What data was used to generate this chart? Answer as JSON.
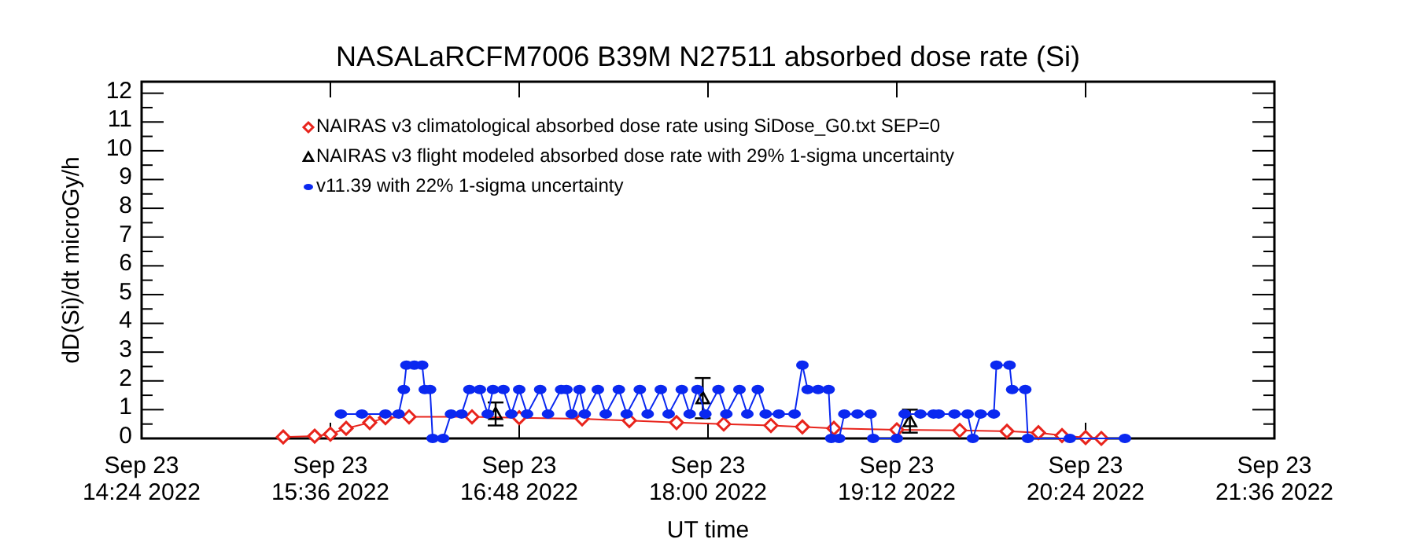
{
  "chart_data": {
    "type": "line",
    "title": "NASALaRCFM7006  B39M N27511 absorbed dose rate (Si)",
    "xlabel": "UT time",
    "ylabel": "dD(Si)/dt microGy/h",
    "xlim": [
      "2022-09-23T14:24",
      "2022-09-23T21:36"
    ],
    "ylim": [
      0,
      12.4
    ],
    "xticks": [
      {
        "value": "2022-09-23T14:24",
        "label": "Sep 23\n14:24 2022"
      },
      {
        "value": "2022-09-23T15:36",
        "label": "Sep 23\n15:36 2022"
      },
      {
        "value": "2022-09-23T16:48",
        "label": "Sep 23\n16:48 2022"
      },
      {
        "value": "2022-09-23T18:00",
        "label": "Sep 23\n18:00 2022"
      },
      {
        "value": "2022-09-23T19:12",
        "label": "Sep 23\n19:12 2022"
      },
      {
        "value": "2022-09-23T20:24",
        "label": "Sep 23\n20:24 2022"
      },
      {
        "value": "2022-09-23T21:36",
        "label": "Sep 23\n21:36 2022"
      }
    ],
    "yticks": [
      0,
      {
        "value": 0.5,
        "label": null
      },
      1,
      {
        "value": 1.5,
        "label": null
      },
      2,
      {
        "value": 2.5,
        "label": null
      },
      3,
      {
        "value": 3.5,
        "label": null
      },
      4,
      {
        "value": 4.5,
        "label": null
      },
      5,
      {
        "value": 5.5,
        "label": null
      },
      6,
      {
        "value": 6.5,
        "label": null
      },
      7,
      {
        "value": 7.5,
        "label": null
      },
      8,
      {
        "value": 8.5,
        "label": null
      },
      9,
      {
        "value": 9.5,
        "label": null
      },
      10,
      {
        "value": 10.5,
        "label": null
      },
      11,
      {
        "value": 11.5,
        "label": null
      },
      12
    ],
    "legend": "top",
    "grid": false,
    "series": [
      {
        "name": "NAIRAS v3 climatological absorbed dose rate using SiDose_G0.txt SEP=0",
        "marker": "diamond",
        "color": "#e8241c",
        "x": [
          "2022-09-23T15:18",
          "2022-09-23T15:30",
          "2022-09-23T15:36",
          "2022-09-23T15:42",
          "2022-09-23T15:51",
          "2022-09-23T15:57",
          "2022-09-23T16:06",
          "2022-09-23T16:30",
          "2022-09-23T16:48",
          "2022-09-23T17:12",
          "2022-09-23T17:30",
          "2022-09-23T17:48",
          "2022-09-23T18:06",
          "2022-09-23T18:24",
          "2022-09-23T18:36",
          "2022-09-23T18:48",
          "2022-09-23T19:12",
          "2022-09-23T19:36",
          "2022-09-23T19:54",
          "2022-09-23T20:06",
          "2022-09-23T20:15",
          "2022-09-23T20:24",
          "2022-09-23T20:30"
        ],
        "values": [
          0.05,
          0.08,
          0.15,
          0.35,
          0.55,
          0.72,
          0.75,
          0.75,
          0.72,
          0.68,
          0.62,
          0.55,
          0.5,
          0.45,
          0.4,
          0.35,
          0.3,
          0.28,
          0.25,
          0.2,
          0.1,
          0.03,
          0
        ]
      },
      {
        "name": "NAIRAS v3 flight modeled absorbed dose rate with 29% 1-sigma uncertainty",
        "type": "scatter",
        "marker": "triangle",
        "color": "#000000",
        "x": [
          "2022-09-23T16:39",
          "2022-09-23T17:58",
          "2022-09-23T19:17"
        ],
        "values": [
          0.85,
          1.4,
          0.6
        ],
        "errors": [
          0.4,
          0.7,
          0.4
        ]
      },
      {
        "name": "v11.39 with 22% 1-sigma uncertainty",
        "marker": "circle",
        "color": "#0a28f0",
        "x": [
          "2022-09-23T15:40",
          "2022-09-23T15:48",
          "2022-09-23T15:57",
          "2022-09-23T16:02",
          "2022-09-23T16:04",
          "2022-09-23T16:05",
          "2022-09-23T16:08",
          "2022-09-23T16:11",
          "2022-09-23T16:12",
          "2022-09-23T16:14",
          "2022-09-23T16:15",
          "2022-09-23T16:19",
          "2022-09-23T16:22",
          "2022-09-23T16:26",
          "2022-09-23T16:29",
          "2022-09-23T16:33",
          "2022-09-23T16:36",
          "2022-09-23T16:38",
          "2022-09-23T16:42",
          "2022-09-23T16:45",
          "2022-09-23T16:48",
          "2022-09-23T16:51",
          "2022-09-23T16:56",
          "2022-09-23T16:59",
          "2022-09-23T17:04",
          "2022-09-23T17:06",
          "2022-09-23T17:08",
          "2022-09-23T17:11",
          "2022-09-23T17:13",
          "2022-09-23T17:18",
          "2022-09-23T17:21",
          "2022-09-23T17:26",
          "2022-09-23T17:29",
          "2022-09-23T17:34",
          "2022-09-23T17:37",
          "2022-09-23T17:42",
          "2022-09-23T17:45",
          "2022-09-23T17:50",
          "2022-09-23T17:53",
          "2022-09-23T17:56",
          "2022-09-23T17:59",
          "2022-09-23T18:04",
          "2022-09-23T18:07",
          "2022-09-23T18:12",
          "2022-09-23T18:15",
          "2022-09-23T18:19",
          "2022-09-23T18:22",
          "2022-09-23T18:27",
          "2022-09-23T18:33",
          "2022-09-23T18:36",
          "2022-09-23T18:38",
          "2022-09-23T18:42",
          "2022-09-23T18:46",
          "2022-09-23T18:47",
          "2022-09-23T18:50",
          "2022-09-23T18:52",
          "2022-09-23T18:57",
          "2022-09-23T19:02",
          "2022-09-23T19:03",
          "2022-09-23T19:12",
          "2022-09-23T19:15",
          "2022-09-23T19:21",
          "2022-09-23T19:26",
          "2022-09-23T19:28",
          "2022-09-23T19:34",
          "2022-09-23T19:39",
          "2022-09-23T19:41",
          "2022-09-23T19:44",
          "2022-09-23T19:49",
          "2022-09-23T19:50",
          "2022-09-23T19:55",
          "2022-09-23T19:56",
          "2022-09-23T20:01",
          "2022-09-23T20:02",
          "2022-09-23T20:18",
          "2022-09-23T20:39"
        ],
        "values": [
          0.85,
          0.85,
          0.85,
          0.85,
          1.7,
          2.55,
          2.55,
          2.55,
          1.7,
          1.7,
          0,
          0,
          0.85,
          0.85,
          1.7,
          1.7,
          0.85,
          1.7,
          1.7,
          0.85,
          1.7,
          0.85,
          1.7,
          0.85,
          1.7,
          1.7,
          0.85,
          1.7,
          0.85,
          1.7,
          0.85,
          1.7,
          0.85,
          1.7,
          0.85,
          1.7,
          0.85,
          1.7,
          0.85,
          1.7,
          0.85,
          1.7,
          0.85,
          1.7,
          0.85,
          1.7,
          0.85,
          0.85,
          0.85,
          2.55,
          1.7,
          1.7,
          1.7,
          0,
          0,
          0.85,
          0.85,
          0.85,
          0,
          0,
          0.85,
          0.85,
          0.85,
          0.85,
          0.85,
          0.85,
          0,
          0.85,
          0.85,
          2.55,
          2.55,
          1.7,
          1.7,
          0,
          0,
          0
        ]
      }
    ]
  }
}
